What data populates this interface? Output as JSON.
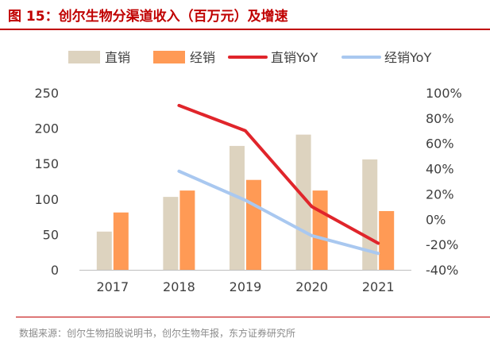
{
  "title": "图 15：创尔生物分渠道收入（百万元）及增速",
  "source": "数据来源：创尔生物招股说明书，创尔生物年报，东方证券研究所",
  "colors": {
    "direct": "#ddd3bf",
    "distribution": "#ff9a55",
    "direct_yoy": "#e0252b",
    "distribution_yoy": "#a9c8f0",
    "axis": "#bfbfbf",
    "text": "#404040",
    "accent": "#c00000"
  },
  "chart_data": {
    "type": "bar",
    "title": "图 15：创尔生物分渠道收入（百万元）及增速",
    "categories": [
      "2017",
      "2018",
      "2019",
      "2020",
      "2021"
    ],
    "series": [
      {
        "name": "直销",
        "type": "bar",
        "axis": "left",
        "values": [
          54,
          103,
          175,
          191,
          156
        ]
      },
      {
        "name": "经销",
        "type": "bar",
        "axis": "left",
        "values": [
          81,
          112,
          127,
          112,
          83
        ]
      },
      {
        "name": "直销YoY",
        "type": "line",
        "axis": "right",
        "values": [
          null,
          90,
          70,
          10,
          -19
        ]
      },
      {
        "name": "经销YoY",
        "type": "line",
        "axis": "right",
        "values": [
          null,
          38,
          15,
          -13,
          -27
        ]
      }
    ],
    "left_axis": {
      "min": 0,
      "max": 250,
      "ticks": [
        0,
        50,
        100,
        150,
        200,
        250
      ]
    },
    "right_axis": {
      "min": -40,
      "max": 100,
      "ticks": [
        -40,
        -20,
        0,
        20,
        40,
        60,
        80,
        100
      ],
      "unit": "%"
    },
    "legend": [
      "直销",
      "经销",
      "直销YoY",
      "经销YoY"
    ],
    "legend_position": "top",
    "grid": false
  }
}
